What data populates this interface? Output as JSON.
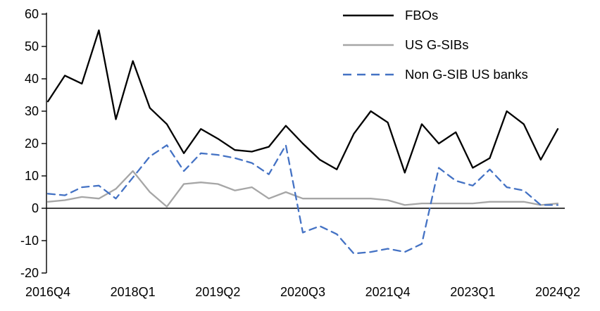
{
  "chart_data": {
    "type": "line",
    "title": "",
    "xlabel": "",
    "ylabel": "",
    "ylim": [
      -20,
      60
    ],
    "y_ticks": [
      60,
      50,
      40,
      30,
      20,
      10,
      0,
      -10,
      -20
    ],
    "grid": false,
    "legend_position": "top-right",
    "n_points": 31,
    "x_tick_labels": [
      "2016Q4",
      "2018Q1",
      "2019Q2",
      "2020Q3",
      "2021Q4",
      "2023Q1",
      "2024Q2"
    ],
    "x_tick_indices": [
      0,
      5,
      10,
      15,
      20,
      25,
      30
    ],
    "axis_color": "#000000",
    "series": [
      {
        "name": "FBOs",
        "color": "#000000",
        "style": "solid",
        "values": [
          33,
          41,
          38.5,
          55,
          27.5,
          45.5,
          31,
          26,
          17,
          24.5,
          21.5,
          18,
          17.5,
          19,
          25.5,
          20,
          15,
          12,
          23,
          30,
          26.5,
          11,
          26,
          20,
          23.5,
          12.5,
          15.5,
          30,
          26,
          15,
          24.5
        ]
      },
      {
        "name": "US G-SIBs",
        "color": "#a6a6a6",
        "style": "solid",
        "values": [
          2,
          2.5,
          3.5,
          3,
          6,
          11.5,
          5,
          0.5,
          7.5,
          8,
          7.5,
          5.5,
          6.5,
          3,
          5,
          3,
          3,
          3,
          3,
          3,
          2.5,
          1,
          1.5,
          1.5,
          1.5,
          1.5,
          2,
          2,
          2,
          1,
          1.5
        ]
      },
      {
        "name": "Non G-SIB US banks",
        "color": "#4472c4",
        "style": "dashed",
        "values": [
          4.5,
          4,
          6.5,
          7,
          3,
          9.5,
          16,
          19.5,
          11.5,
          17,
          16.5,
          15.5,
          14,
          10.5,
          19.5,
          -7.5,
          -5.5,
          -8,
          -14,
          -13.5,
          -12.5,
          -13.5,
          -11,
          12.5,
          8.5,
          7,
          12,
          6.5,
          5.5,
          1,
          1
        ]
      }
    ]
  }
}
